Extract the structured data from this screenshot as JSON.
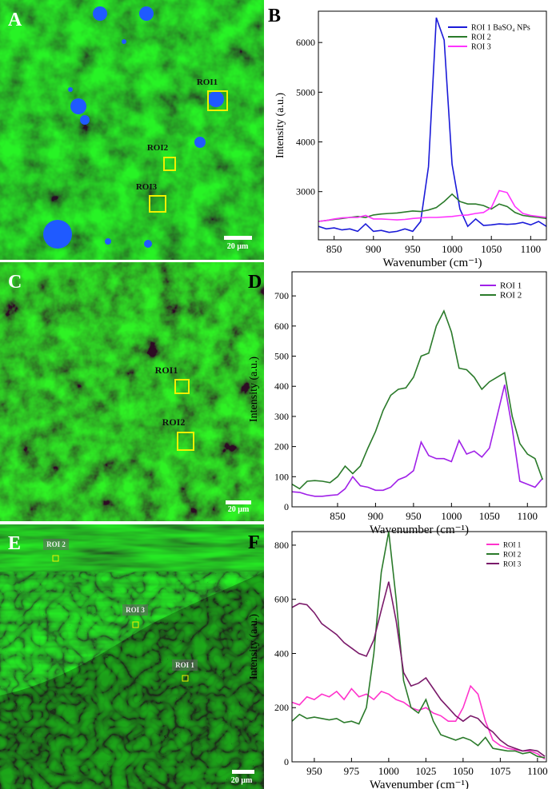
{
  "images": [
    {
      "label": "A",
      "rois": [
        "ROI1",
        "ROI2",
        "ROI3"
      ],
      "scale_bar": "20 µm"
    },
    {
      "label": "C",
      "rois": [
        "ROI1",
        "ROI2"
      ],
      "scale_bar": "20 µm"
    },
    {
      "label": "E",
      "rois": [
        "ROI 2",
        "ROI 3",
        "ROI 1"
      ],
      "scale_bar": "20 µm"
    }
  ],
  "chart_data": [
    {
      "type": "line",
      "panel": "B",
      "x_label": "Wavenumber (cm⁻¹)",
      "y_label": "Intensity (a.u.)",
      "x": [
        830,
        840,
        850,
        860,
        870,
        880,
        890,
        900,
        910,
        920,
        930,
        940,
        950,
        960,
        970,
        980,
        990,
        1000,
        1010,
        1020,
        1030,
        1040,
        1050,
        1060,
        1070,
        1080,
        1090,
        1100,
        1110,
        1120
      ],
      "series": [
        {
          "name": "ROI 1 BaSO₄ NPs",
          "color": "#1a1ad8",
          "values": [
            2300,
            2250,
            2270,
            2230,
            2250,
            2200,
            2350,
            2200,
            2220,
            2180,
            2200,
            2250,
            2200,
            2400,
            3500,
            6500,
            6050,
            3550,
            2650,
            2300,
            2450,
            2320,
            2330,
            2350,
            2340,
            2350,
            2380,
            2330,
            2400,
            2300
          ]
        },
        {
          "name": "ROI 2",
          "color": "#2a7a2a",
          "values": [
            2400,
            2420,
            2440,
            2460,
            2480,
            2500,
            2480,
            2530,
            2550,
            2560,
            2570,
            2590,
            2610,
            2600,
            2630,
            2680,
            2800,
            2950,
            2800,
            2750,
            2750,
            2720,
            2650,
            2750,
            2700,
            2580,
            2520,
            2500,
            2480,
            2460
          ]
        },
        {
          "name": "ROI 3",
          "color": "#ff33ff",
          "values": [
            2400,
            2420,
            2450,
            2470,
            2480,
            2480,
            2520,
            2450,
            2450,
            2440,
            2430,
            2440,
            2460,
            2470,
            2480,
            2480,
            2490,
            2500,
            2520,
            2530,
            2560,
            2580,
            2680,
            3020,
            2980,
            2700,
            2560,
            2520,
            2500,
            2480
          ]
        }
      ],
      "xlim": [
        830,
        1120
      ],
      "ylim": [
        2030,
        6630
      ],
      "xticks": [
        850,
        900,
        950,
        1000,
        1050,
        1100
      ],
      "yticks": [
        3000,
        4000,
        5000,
        6000
      ],
      "legend": "upper right"
    },
    {
      "type": "line",
      "panel": "D",
      "x_label": "Wavenumber (cm⁻¹)",
      "y_label": "Intensity (a.u.)",
      "x": [
        790,
        800,
        810,
        820,
        830,
        840,
        850,
        860,
        870,
        880,
        890,
        900,
        910,
        920,
        930,
        940,
        950,
        960,
        970,
        980,
        990,
        1000,
        1010,
        1020,
        1030,
        1040,
        1050,
        1060,
        1070,
        1080,
        1090,
        1100,
        1110,
        1120
      ],
      "series": [
        {
          "name": "ROI 1",
          "color": "#a020e8",
          "values": [
            50,
            48,
            40,
            35,
            35,
            38,
            40,
            60,
            100,
            70,
            65,
            55,
            55,
            65,
            90,
            100,
            120,
            215,
            170,
            160,
            160,
            150,
            220,
            175,
            185,
            165,
            195,
            300,
            405,
            260,
            85,
            75,
            65,
            95
          ]
        },
        {
          "name": "ROI 2",
          "color": "#2a7a2a",
          "values": [
            75,
            60,
            85,
            87,
            85,
            80,
            100,
            135,
            110,
            135,
            195,
            250,
            320,
            370,
            390,
            395,
            430,
            500,
            510,
            600,
            650,
            580,
            460,
            455,
            430,
            390,
            415,
            430,
            445,
            300,
            210,
            175,
            160,
            90
          ]
        }
      ],
      "xlim": [
        790,
        1125
      ],
      "ylim": [
        0,
        780
      ],
      "xticks": [
        850,
        900,
        950,
        1000,
        1050,
        1100
      ],
      "yticks": [
        0,
        100,
        200,
        300,
        400,
        500,
        600,
        700
      ],
      "legend": "upper right"
    },
    {
      "type": "line",
      "panel": "F",
      "x_label": "Wavenumber (cm⁻¹)",
      "y_label": "Intensity (a.u.)",
      "x": [
        935,
        940,
        945,
        950,
        955,
        960,
        965,
        970,
        975,
        980,
        985,
        990,
        995,
        1000,
        1005,
        1010,
        1015,
        1020,
        1025,
        1030,
        1035,
        1040,
        1045,
        1050,
        1055,
        1060,
        1065,
        1070,
        1075,
        1080,
        1085,
        1090,
        1095,
        1100,
        1105
      ],
      "series": [
        {
          "name": "ROI 1",
          "color": "#ff33cc",
          "values": [
            220,
            210,
            240,
            230,
            250,
            240,
            260,
            230,
            270,
            240,
            250,
            230,
            260,
            250,
            230,
            220,
            200,
            190,
            200,
            180,
            170,
            150,
            150,
            200,
            280,
            250,
            150,
            80,
            60,
            50,
            45,
            40,
            40,
            30,
            10
          ]
        },
        {
          "name": "ROI 2",
          "color": "#2a7a2a",
          "values": [
            150,
            175,
            160,
            165,
            160,
            155,
            160,
            145,
            150,
            140,
            200,
            400,
            700,
            850,
            600,
            300,
            200,
            180,
            230,
            150,
            100,
            90,
            80,
            90,
            80,
            60,
            90,
            50,
            45,
            40,
            40,
            30,
            35,
            20,
            15
          ]
        },
        {
          "name": "ROI 3",
          "color": "#7a1a6a",
          "values": [
            570,
            585,
            580,
            550,
            510,
            490,
            470,
            440,
            420,
            400,
            390,
            450,
            560,
            665,
            520,
            330,
            280,
            290,
            310,
            270,
            230,
            200,
            170,
            150,
            170,
            160,
            130,
            110,
            80,
            60,
            50,
            40,
            45,
            40,
            20
          ]
        }
      ],
      "xlim": [
        935,
        1106
      ],
      "ylim": [
        0,
        850
      ],
      "xticks": [
        950,
        975,
        1000,
        1025,
        1050,
        1075,
        1100
      ],
      "yticks": [
        0,
        200,
        400,
        600,
        800
      ],
      "legend": "upper right"
    }
  ]
}
